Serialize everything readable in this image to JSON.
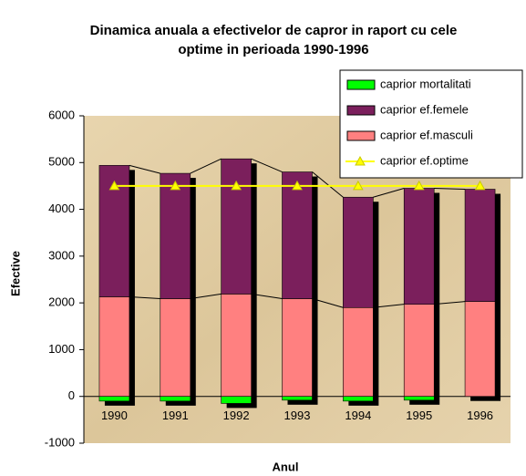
{
  "chart_data": {
    "type": "bar",
    "title": [
      "Dinamica anuala a efectivelor de capror in raport cu cele",
      "optime in perioada 1990-1996"
    ],
    "x_label": "Anul",
    "y_label": "Efective",
    "categories": [
      "1990",
      "1991",
      "1992",
      "1993",
      "1994",
      "1995",
      "1996"
    ],
    "series": [
      {
        "name": "caprior mortalitati",
        "color": "#00ff00",
        "kind": "bar",
        "values": [
          -100,
          -100,
          -150,
          -80,
          -100,
          -80,
          0
        ]
      },
      {
        "name": "caprior ef.femele",
        "color": "#7b1f5c",
        "kind": "bar",
        "values": [
          2810,
          2680,
          2890,
          2710,
          2360,
          2480,
          2400
        ]
      },
      {
        "name": "caprior ef.masculi",
        "color": "#ff8080",
        "kind": "bar",
        "values": [
          2130,
          2090,
          2190,
          2090,
          1900,
          1970,
          2030
        ]
      },
      {
        "name": "caprior ef.optime",
        "color": "#ffff00",
        "kind": "line",
        "values": [
          4500,
          4500,
          4500,
          4500,
          4500,
          4500,
          4500
        ]
      }
    ],
    "stack_order": [
      2,
      1
    ],
    "ylim": [
      -1000,
      6000
    ],
    "yticks": [
      -1000,
      0,
      1000,
      2000,
      3000,
      4000,
      5000,
      6000
    ],
    "legend": "top-right"
  }
}
